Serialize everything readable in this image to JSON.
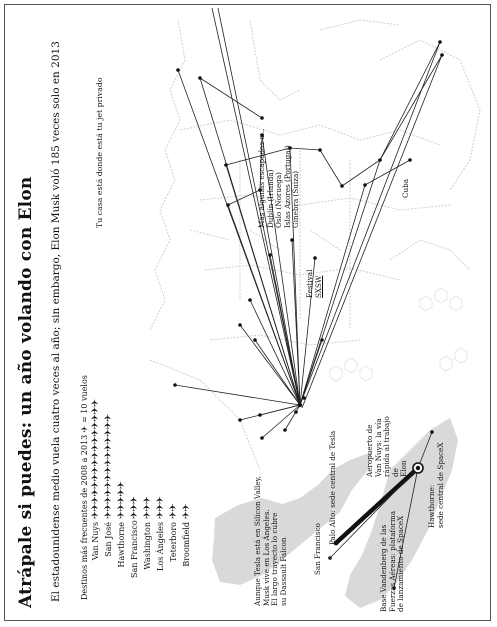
{
  "header": {
    "title": "Atrápale si puedes: un año volando con Elon",
    "subtitle_line1": "El estadounidense medio vuela cuatro veces al año; sin embargo, Elon Musk voló 185 veces solo en 2013",
    "subtitle_line2": "",
    "legend_title": "Destinos más frecuentes de 2008 a 2013",
    "legend_unit": "= 10 vuelos",
    "plane_icon": "airplane-icon"
  },
  "destinations": [
    {
      "name": "Van Nuys",
      "planes": 16
    },
    {
      "name": "San José",
      "planes": 14
    },
    {
      "name": "Hawthorne",
      "planes": 5
    },
    {
      "name": "San Francisco",
      "planes": 3
    },
    {
      "name": "Washington",
      "planes": 3
    },
    {
      "name": "Los Ángeles",
      "planes": 3
    },
    {
      "name": "Teterboro",
      "planes": 2
    },
    {
      "name": "Broomfield",
      "planes": 2
    }
  ],
  "labels": {
    "jet": "Tu casa está donde está tu jet privado",
    "escapadas": [
      "Más algunas escapadas a...",
      "Dublín (Irlanda)",
      "Oslo (Noruega)",
      "Islas Azores (Portugal)",
      "Ginebra (Suiza)"
    ],
    "cuba": "Cuba",
    "festival": [
      "Festival",
      "SXSW"
    ],
    "sf": "San Francisco",
    "palo_alto": "Palo Alto: sede central de Tesla",
    "tesla_note": [
      "Aunque Tesla está en Silicon Valley,",
      "Musk vive en Los Ángeles.",
      "El largo trayecto lo cubre",
      "su Dassault Falcon"
    ],
    "van_nuys_note": [
      "Aeropuerto de",
      "Van Nuys: la vía",
      "rápida al trabajo",
      "de",
      "Elon"
    ],
    "vandenberg": [
      "Base Vandenberg de las",
      "Fuerzas Aéreas: plataforma",
      "de lanzamiento de SpaceX"
    ],
    "hawthorne": [
      "Hawthorne:",
      "sede central de SpaceX"
    ]
  },
  "colors": {
    "ink": "#111111",
    "grid": "#d2d2d2",
    "region": "#d9d9d9"
  }
}
